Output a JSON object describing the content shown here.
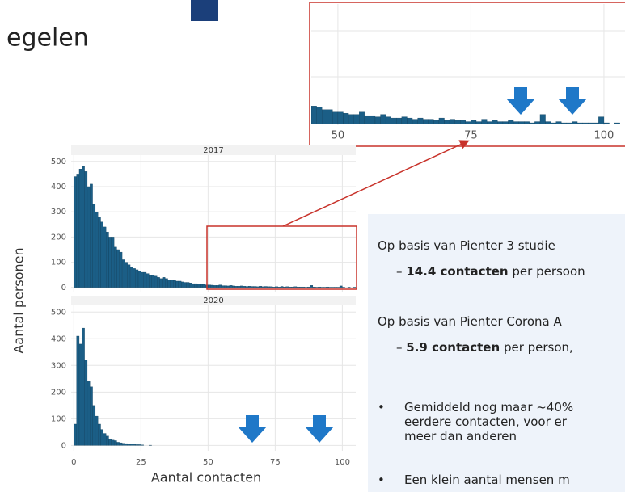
{
  "slide": {
    "title": "egelen",
    "text": [
      "Op basis van Pienter 3 studie",
      "14.4 contacten",
      "per persoon",
      "Op basis van Pienter Corona A",
      "5.9 contacten",
      "per person,",
      "Gemiddeld nog maar ~40%",
      "eerdere contacten, voor er",
      "meer dan anderen",
      "Een klein aantal mensen m"
    ]
  },
  "chart_data": [
    {
      "type": "histogram",
      "title": "2017",
      "ylabel": "Aantal personen",
      "color": "#1b5e86",
      "grid": true,
      "bins": [
        0,
        1,
        2,
        3,
        4,
        5,
        6,
        7,
        8,
        9,
        10,
        11,
        12,
        13,
        14,
        15,
        16,
        17,
        18,
        19,
        20,
        21,
        22,
        23,
        24,
        25,
        26,
        27,
        28,
        29,
        30,
        31,
        32,
        33,
        34,
        35,
        36,
        37,
        38,
        39,
        40,
        41,
        42,
        43,
        44,
        45,
        46,
        47,
        48,
        49,
        50,
        51,
        52,
        53,
        54,
        55,
        56,
        57,
        58,
        59,
        60,
        61,
        62,
        63,
        64,
        65,
        66,
        67,
        68,
        69,
        70,
        71,
        72,
        73,
        74,
        75,
        76,
        77,
        78,
        79,
        80,
        81,
        82,
        83,
        84,
        85,
        86,
        87,
        88,
        89,
        90,
        91,
        92,
        93,
        94,
        95,
        96,
        97,
        98,
        99,
        100,
        101,
        102,
        103,
        104,
        105
      ],
      "values": [
        440,
        450,
        470,
        480,
        460,
        400,
        410,
        330,
        300,
        280,
        260,
        240,
        220,
        200,
        200,
        160,
        150,
        140,
        110,
        100,
        90,
        80,
        75,
        70,
        65,
        60,
        60,
        55,
        50,
        50,
        45,
        40,
        35,
        40,
        35,
        30,
        30,
        28,
        25,
        25,
        22,
        20,
        20,
        18,
        15,
        15,
        14,
        12,
        12,
        10,
        10,
        9,
        8,
        8,
        10,
        7,
        7,
        6,
        8,
        6,
        5,
        5,
        6,
        5,
        4,
        5,
        4,
        4,
        3,
        5,
        3,
        4,
        3,
        3,
        2,
        3,
        2,
        4,
        2,
        3,
        2,
        2,
        3,
        2,
        2,
        2,
        1,
        2,
        8,
        2,
        1,
        2,
        1,
        1,
        2,
        1,
        1,
        1,
        1,
        6,
        1,
        0,
        1,
        0,
        1
      ],
      "xlim": [
        -1,
        105
      ],
      "ylim": [
        -20,
        525
      ],
      "xticks": [
        0,
        25,
        50,
        75,
        100
      ],
      "yticks": [
        0,
        100,
        200,
        300,
        400,
        500
      ]
    },
    {
      "type": "histogram",
      "title": "2020",
      "xlabel": "Aantal contacten",
      "color": "#1b5e86",
      "grid": true,
      "bins": [
        0,
        1,
        2,
        3,
        4,
        5,
        6,
        7,
        8,
        9,
        10,
        11,
        12,
        13,
        14,
        15,
        16,
        17,
        18,
        19,
        20,
        21,
        22,
        23,
        24,
        25,
        26,
        27,
        28,
        29,
        30
      ],
      "values": [
        80,
        410,
        380,
        440,
        320,
        240,
        220,
        150,
        110,
        80,
        60,
        45,
        35,
        25,
        20,
        18,
        12,
        10,
        8,
        7,
        6,
        5,
        4,
        3,
        3,
        2,
        0,
        0,
        1,
        0
      ],
      "xlim": [
        -1,
        105
      ],
      "ylim": [
        -20,
        525
      ],
      "xticks": [
        0,
        25,
        50,
        75,
        100
      ],
      "yticks": [
        0,
        100,
        200,
        300,
        400,
        500
      ]
    },
    {
      "type": "zoom",
      "of": 0,
      "xlim": [
        45,
        107
      ],
      "ylim": [
        -1,
        100
      ],
      "xticks": [
        50,
        75,
        100
      ]
    }
  ]
}
